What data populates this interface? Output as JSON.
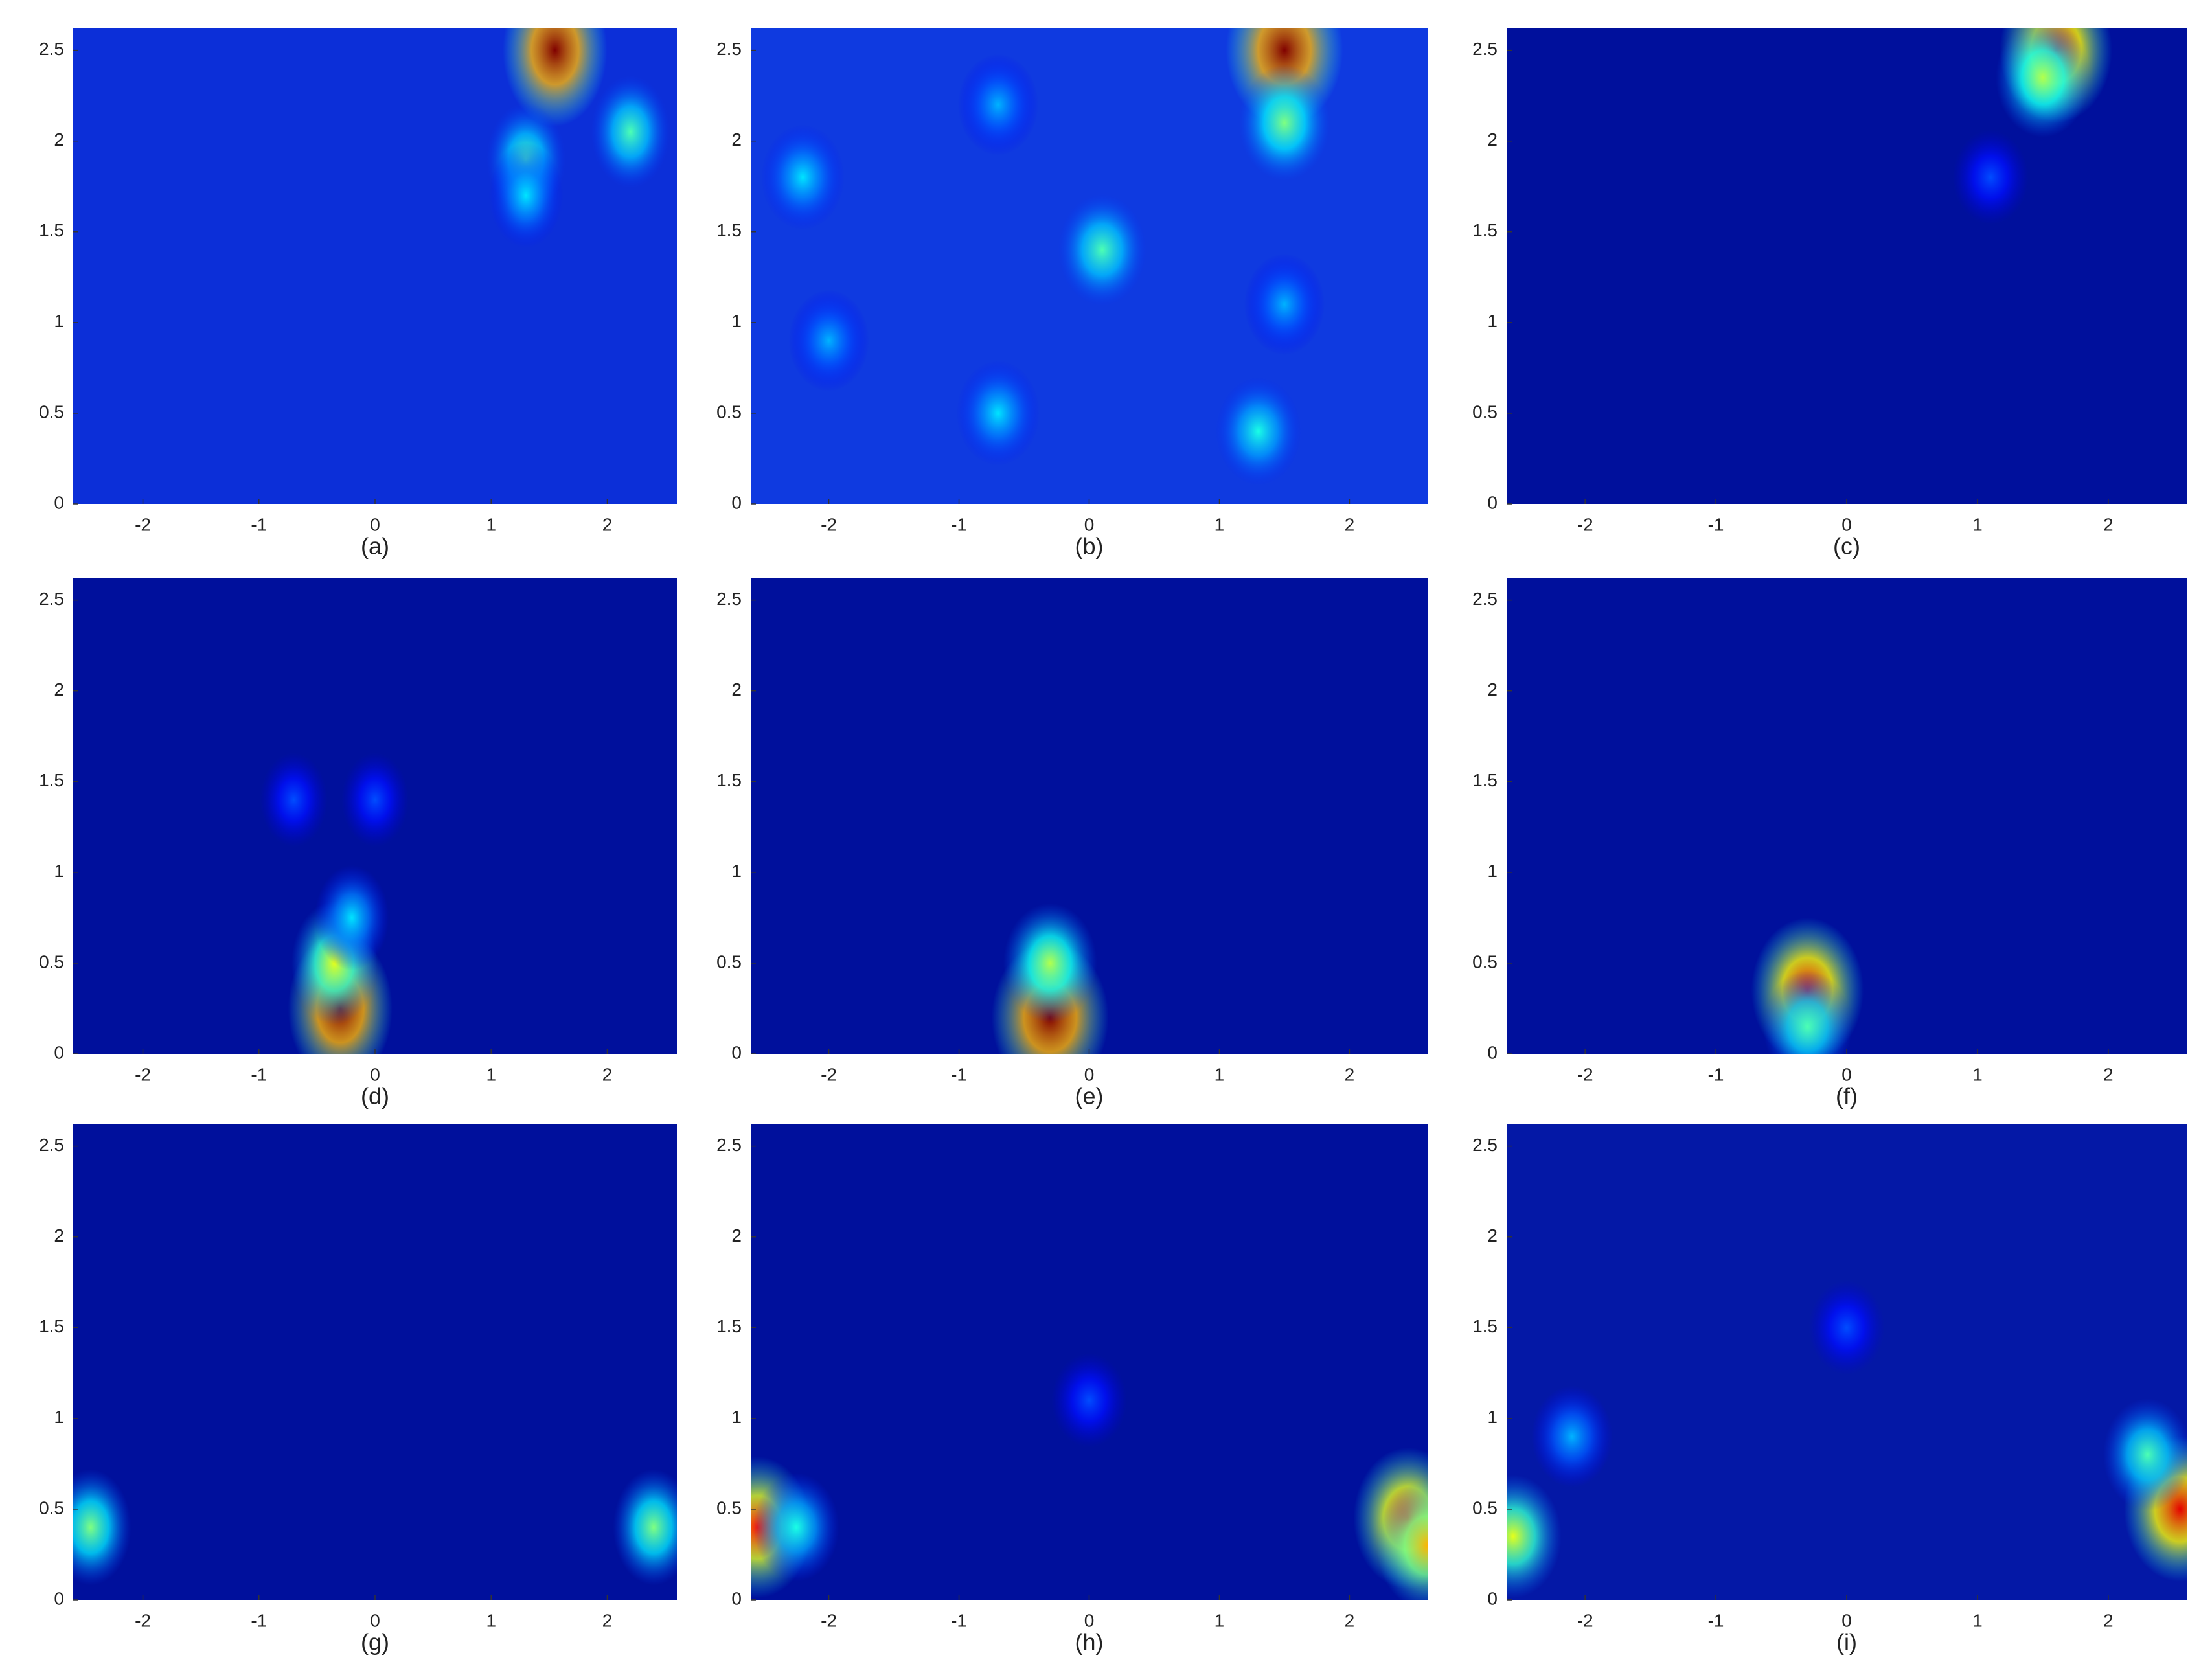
{
  "chart_data": [
    {
      "type": "heatmap",
      "caption": "(a)",
      "background": "#0c2fd8",
      "xlim": [
        -2.6,
        2.6
      ],
      "ylim": [
        0,
        2.62
      ],
      "xticks": [
        -2,
        -1,
        0,
        1,
        2
      ],
      "yticks": [
        0,
        0.5,
        1,
        1.5,
        2,
        2.5
      ],
      "x": [
        1.55,
        1.3,
        2.2,
        1.3
      ],
      "y": [
        2.5,
        1.9,
        2.05,
        1.7
      ],
      "values": [
        1.0,
        0.45,
        0.45,
        0.35
      ]
    },
    {
      "type": "heatmap",
      "caption": "(b)",
      "background": "#0f3ae0",
      "xlim": [
        -2.6,
        2.6
      ],
      "ylim": [
        0,
        2.62
      ],
      "xticks": [
        -2,
        -1,
        0,
        1,
        2
      ],
      "yticks": [
        0,
        0.5,
        1,
        1.5,
        2,
        2.5
      ],
      "x": [
        1.5,
        1.5,
        0.1,
        -2.2,
        -0.7,
        -2.0,
        -0.7,
        1.3,
        1.5
      ],
      "y": [
        2.5,
        2.1,
        1.4,
        1.8,
        2.2,
        0.9,
        0.5,
        0.4,
        1.1
      ],
      "values": [
        1.0,
        0.5,
        0.45,
        0.35,
        0.3,
        0.3,
        0.35,
        0.4,
        0.3
      ]
    },
    {
      "type": "heatmap",
      "caption": "(c)",
      "background": "#00109c",
      "xlim": [
        -2.6,
        2.6
      ],
      "ylim": [
        0,
        2.62
      ],
      "xticks": [
        -2,
        -1,
        0,
        1,
        2
      ],
      "yticks": [
        0,
        0.5,
        1,
        1.5,
        2,
        2.5
      ],
      "x": [
        1.6,
        1.5,
        1.1
      ],
      "y": [
        2.5,
        2.35,
        1.8
      ],
      "values": [
        0.9,
        0.55,
        0.2
      ]
    },
    {
      "type": "heatmap",
      "caption": "(d)",
      "background": "#00109c",
      "xlim": [
        -2.6,
        2.6
      ],
      "ylim": [
        0,
        2.62
      ],
      "xticks": [
        -2,
        -1,
        0,
        1,
        2
      ],
      "yticks": [
        0,
        0.5,
        1,
        1.5,
        2,
        2.5
      ],
      "x": [
        -0.3,
        -0.35,
        -0.2,
        0,
        -0.7
      ],
      "y": [
        0.25,
        0.5,
        0.75,
        1.4,
        1.4
      ],
      "values": [
        1.0,
        0.6,
        0.35,
        0.2,
        0.2
      ]
    },
    {
      "type": "heatmap",
      "caption": "(e)",
      "background": "#00109c",
      "xlim": [
        -2.6,
        2.6
      ],
      "ylim": [
        0,
        2.62
      ],
      "xticks": [
        -2,
        -1,
        0,
        1,
        2
      ],
      "yticks": [
        0,
        0.5,
        1,
        1.5,
        2,
        2.5
      ],
      "x": [
        -0.3,
        -0.3
      ],
      "y": [
        0.2,
        0.5
      ],
      "values": [
        1.0,
        0.55
      ]
    },
    {
      "type": "heatmap",
      "caption": "(f)",
      "background": "#00109c",
      "xlim": [
        -2.6,
        2.6
      ],
      "ylim": [
        0,
        2.62
      ],
      "xticks": [
        -2,
        -1,
        0,
        1,
        2
      ],
      "yticks": [
        0,
        0.5,
        1,
        1.5,
        2,
        2.5
      ],
      "x": [
        -0.3,
        -0.3
      ],
      "y": [
        0.35,
        0.15
      ],
      "values": [
        0.9,
        0.45
      ]
    },
    {
      "type": "heatmap",
      "caption": "(g)",
      "background": "#00109c",
      "xlim": [
        -2.6,
        2.6
      ],
      "ylim": [
        0,
        2.62
      ],
      "xticks": [
        -2,
        -1,
        0,
        1,
        2
      ],
      "yticks": [
        0,
        0.5,
        1,
        1.5,
        2,
        2.5
      ],
      "x": [
        -2.45,
        2.4
      ],
      "y": [
        0.4,
        0.4
      ],
      "values": [
        0.5,
        0.5
      ]
    },
    {
      "type": "heatmap",
      "caption": "(h)",
      "background": "#00109c",
      "xlim": [
        -2.6,
        2.6
      ],
      "ylim": [
        0,
        2.62
      ],
      "xticks": [
        -2,
        -1,
        0,
        1,
        2
      ],
      "yticks": [
        0,
        0.5,
        1,
        1.5,
        2,
        2.5
      ],
      "x": [
        -2.55,
        2.45,
        -2.25,
        2.6,
        0
      ],
      "y": [
        0.4,
        0.45,
        0.4,
        0.3,
        1.1
      ],
      "values": [
        0.85,
        0.85,
        0.4,
        0.7,
        0.2
      ]
    },
    {
      "type": "heatmap",
      "caption": "(i)",
      "background": "#0418a6",
      "xlim": [
        -2.6,
        2.6
      ],
      "ylim": [
        0,
        2.62
      ],
      "xticks": [
        -2,
        -1,
        0,
        1,
        2
      ],
      "yticks": [
        0,
        0.5,
        1,
        1.5,
        2,
        2.5
      ],
      "x": [
        -2.55,
        2.55,
        2.3,
        -2.1,
        0
      ],
      "y": [
        0.35,
        0.5,
        0.8,
        0.9,
        1.5
      ],
      "values": [
        0.6,
        0.9,
        0.45,
        0.3,
        0.2
      ]
    }
  ]
}
